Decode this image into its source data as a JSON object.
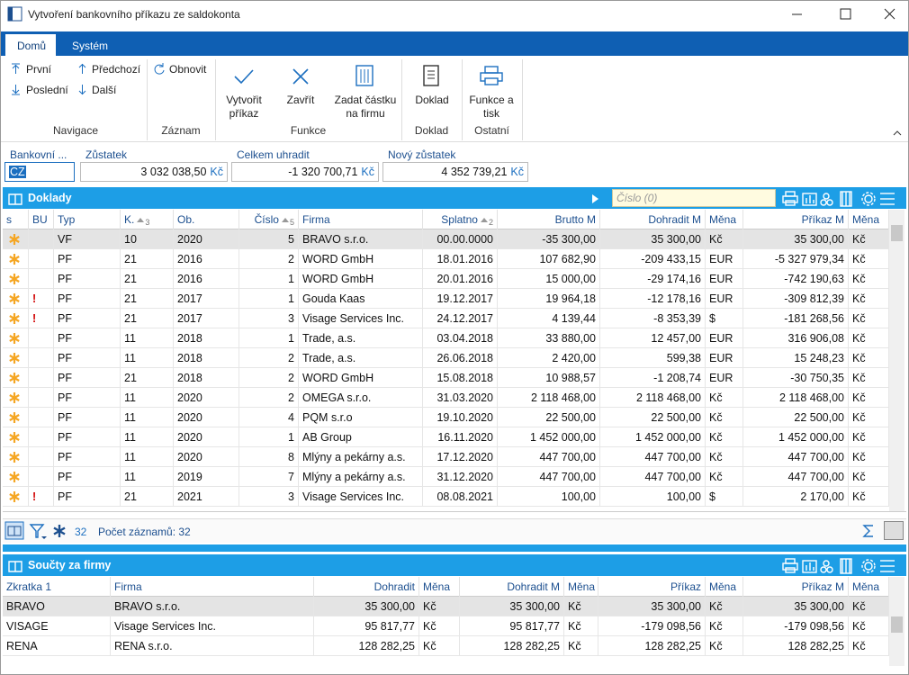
{
  "window": {
    "title": "Vytvoření bankovního příkazu ze saldokonta"
  },
  "ribbon": {
    "tabs": [
      "Domů",
      "Systém"
    ],
    "groups": [
      {
        "label": "Navigace",
        "buttons": [
          "První",
          "Předchozí",
          "Poslední",
          "Další"
        ]
      },
      {
        "label": "Záznam",
        "buttons": [
          "Obnovit"
        ]
      },
      {
        "label": "Funkce",
        "buttons": [
          "Vytvořit příkaz",
          "Zavřít",
          "Zadat částku na firmu"
        ]
      },
      {
        "label": "Doklad",
        "buttons": [
          "Doklad"
        ]
      },
      {
        "label": "Ostatní",
        "buttons": [
          "Funkce a tisk"
        ]
      }
    ]
  },
  "fields": [
    {
      "label": "Bankovní ...",
      "value": "CZ"
    },
    {
      "label": "Zůstatek",
      "value": "3 032 038,50",
      "unit": "Kč"
    },
    {
      "label": "Celkem uhradit",
      "value": "-1 320 700,71",
      "unit": "Kč"
    },
    {
      "label": "Nový zůstatek",
      "value": "4 352 739,21",
      "unit": "Kč"
    }
  ],
  "documents": {
    "title": "Doklady",
    "search_placeholder": "Číslo (0)",
    "columns": [
      "s",
      "BU",
      "Typ",
      "K.",
      "Ob.",
      "Číslo",
      "Firma",
      "Splatno",
      "Brutto M",
      "Dohradit M",
      "Měna",
      "Příkaz M",
      "Měna"
    ],
    "sort_order": [
      null,
      null,
      null,
      "3",
      null,
      "5",
      null,
      "2",
      null,
      null,
      null,
      null,
      null
    ],
    "rows": [
      [
        null,
        null,
        "VF",
        "10",
        "2020",
        "5",
        "BRAVO s.r.o.",
        "00.00.0000",
        "-35 300,00",
        "35 300,00",
        "Kč",
        "35 300,00",
        "Kč"
      ],
      [
        null,
        null,
        "PF",
        "21",
        "2016",
        "2",
        "WORD GmbH",
        "18.01.2016",
        "107 682,90",
        "-209 433,15",
        "EUR",
        "-5 327 979,34",
        "Kč"
      ],
      [
        null,
        null,
        "PF",
        "21",
        "2016",
        "1",
        "WORD GmbH",
        "20.01.2016",
        "15 000,00",
        "-29 174,16",
        "EUR",
        "-742 190,63",
        "Kč"
      ],
      [
        null,
        "!",
        "PF",
        "21",
        "2017",
        "1",
        "Gouda Kaas",
        "19.12.2017",
        "19 964,18",
        "-12 178,16",
        "EUR",
        "-309 812,39",
        "Kč"
      ],
      [
        null,
        "!",
        "PF",
        "21",
        "2017",
        "3",
        "Visage Services Inc.",
        "24.12.2017",
        "4 139,44",
        "-8 353,39",
        "$",
        "-181 268,56",
        "Kč"
      ],
      [
        null,
        null,
        "PF",
        "11",
        "2018",
        "1",
        "Trade, a.s.",
        "03.04.2018",
        "33 880,00",
        "12 457,00",
        "EUR",
        "316 906,08",
        "Kč"
      ],
      [
        null,
        null,
        "PF",
        "11",
        "2018",
        "2",
        "Trade, a.s.",
        "26.06.2018",
        "2 420,00",
        "599,38",
        "EUR",
        "15 248,23",
        "Kč"
      ],
      [
        null,
        null,
        "PF",
        "21",
        "2018",
        "2",
        "WORD GmbH",
        "15.08.2018",
        "10 988,57",
        "-1 208,74",
        "EUR",
        "-30 750,35",
        "Kč"
      ],
      [
        null,
        null,
        "PF",
        "11",
        "2020",
        "2",
        "OMEGA s.r.o.",
        "31.03.2020",
        "2 118 468,00",
        "2 118 468,00",
        "Kč",
        "2 118 468,00",
        "Kč"
      ],
      [
        null,
        null,
        "PF",
        "11",
        "2020",
        "4",
        "PQM s.r.o",
        "19.10.2020",
        "22 500,00",
        "22 500,00",
        "Kč",
        "22 500,00",
        "Kč"
      ],
      [
        null,
        null,
        "PF",
        "11",
        "2020",
        "1",
        "AB Group",
        "16.11.2020",
        "1 452 000,00",
        "1 452 000,00",
        "Kč",
        "1 452 000,00",
        "Kč"
      ],
      [
        null,
        null,
        "PF",
        "11",
        "2020",
        "8",
        "Mlýny a pekárny a.s.",
        "17.12.2020",
        "447 700,00",
        "447 700,00",
        "Kč",
        "447 700,00",
        "Kč"
      ],
      [
        null,
        null,
        "PF",
        "11",
        "2019",
        "7",
        "Mlýny a pekárny a.s.",
        "31.12.2020",
        "447 700,00",
        "447 700,00",
        "Kč",
        "447 700,00",
        "Kč"
      ],
      [
        null,
        "!",
        "PF",
        "21",
        "2021",
        "3",
        "Visage Services Inc.",
        "08.08.2021",
        "100,00",
        "100,00",
        "$",
        "2 170,00",
        "Kč"
      ]
    ],
    "footer": {
      "count": "32",
      "record_count": "Počet záznamů: 32"
    }
  },
  "company_totals": {
    "title": "Součty za firmy",
    "columns": [
      "Zkratka 1",
      "Firma",
      "Dohradit",
      "Měna",
      "Dohradit M",
      "Měna",
      "Příkaz",
      "Měna",
      "Příkaz M",
      "Měna"
    ],
    "rows": [
      [
        "BRAVO",
        "BRAVO s.r.o.",
        "35 300,00",
        "Kč",
        "35 300,00",
        "Kč",
        "35 300,00",
        "Kč",
        "35 300,00",
        "Kč"
      ],
      [
        "VISAGE",
        "Visage Services Inc.",
        "95 817,77",
        "Kč",
        "95 817,77",
        "Kč",
        "-179 098,56",
        "Kč",
        "-179 098,56",
        "Kč"
      ],
      [
        "RENA",
        "RENA s.r.o.",
        "128 282,25",
        "Kč",
        "128 282,25",
        "Kč",
        "128 282,25",
        "Kč",
        "128 282,25",
        "Kč"
      ]
    ]
  }
}
